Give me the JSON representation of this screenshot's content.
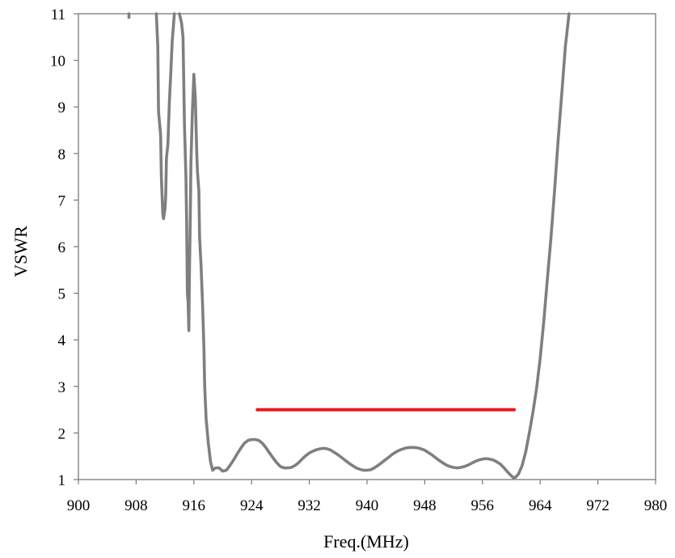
{
  "chart_data": {
    "type": "line",
    "xlabel": "Freq.(MHz)",
    "ylabel": "VSWR",
    "xlim": [
      900,
      980
    ],
    "ylim": [
      1,
      11
    ],
    "xticks": [
      900,
      908,
      916,
      924,
      932,
      940,
      948,
      956,
      964,
      972,
      980
    ],
    "yticks": [
      1,
      2,
      3,
      4,
      5,
      6,
      7,
      8,
      9,
      10,
      11
    ],
    "grid": false,
    "legend": "none",
    "series": [
      {
        "color": "#7f7f7f",
        "points": [
          [
            907.0,
            11.0
          ],
          [
            907.0,
            10.92
          ],
          null,
          [
            910.8,
            11.0
          ],
          [
            911.0,
            10.3
          ],
          [
            911.1,
            8.9
          ],
          [
            911.4,
            8.4
          ],
          [
            911.5,
            7.5
          ],
          [
            911.7,
            6.7
          ],
          [
            911.8,
            6.6
          ],
          [
            912.0,
            6.8
          ],
          [
            912.1,
            7.1
          ],
          [
            912.2,
            7.9
          ],
          [
            912.4,
            8.2
          ],
          [
            912.6,
            9.1
          ],
          [
            912.8,
            9.7
          ],
          [
            913.0,
            10.4
          ],
          [
            913.3,
            11.0
          ],
          null,
          [
            914.0,
            11.0
          ],
          [
            914.3,
            10.8
          ],
          [
            914.5,
            10.5
          ],
          [
            914.7,
            8.6
          ],
          [
            914.9,
            7.5
          ],
          [
            915.0,
            6.5
          ],
          [
            915.1,
            5.0
          ],
          [
            915.2,
            4.8
          ],
          [
            915.3,
            4.2
          ],
          [
            915.4,
            5.5
          ],
          [
            915.5,
            6.5
          ],
          [
            915.6,
            7.8
          ],
          [
            915.8,
            8.9
          ],
          [
            916.0,
            9.7
          ],
          [
            916.2,
            9.2
          ],
          [
            916.4,
            8.0
          ],
          [
            916.5,
            7.6
          ],
          [
            916.7,
            7.2
          ],
          [
            916.8,
            6.2
          ],
          [
            917.0,
            5.6
          ],
          [
            917.2,
            4.8
          ],
          [
            917.4,
            3.8
          ],
          [
            917.5,
            3.0
          ],
          [
            917.7,
            2.3
          ],
          [
            918.0,
            1.8
          ],
          [
            918.3,
            1.4
          ],
          [
            918.6,
            1.2
          ],
          [
            919.0,
            1.25
          ],
          [
            919.5,
            1.25
          ],
          [
            920.0,
            1.18
          ],
          [
            920.5,
            1.2
          ],
          [
            921.0,
            1.3
          ],
          [
            921.5,
            1.42
          ],
          [
            922.0,
            1.55
          ],
          [
            922.5,
            1.67
          ],
          [
            923.0,
            1.78
          ],
          [
            923.5,
            1.84
          ],
          [
            924.0,
            1.86
          ],
          [
            924.5,
            1.86
          ],
          [
            925.0,
            1.84
          ],
          [
            925.5,
            1.78
          ],
          [
            926.0,
            1.68
          ],
          [
            926.5,
            1.57
          ],
          [
            927.0,
            1.46
          ],
          [
            927.5,
            1.36
          ],
          [
            928.0,
            1.28
          ],
          [
            928.5,
            1.25
          ],
          [
            929.0,
            1.25
          ],
          [
            929.5,
            1.26
          ],
          [
            930.0,
            1.3
          ],
          [
            930.5,
            1.36
          ],
          [
            931.0,
            1.44
          ],
          [
            931.5,
            1.51
          ],
          [
            932.0,
            1.57
          ],
          [
            932.5,
            1.61
          ],
          [
            933.0,
            1.64
          ],
          [
            933.5,
            1.66
          ],
          [
            934.0,
            1.67
          ],
          [
            934.5,
            1.66
          ],
          [
            935.0,
            1.63
          ],
          [
            935.5,
            1.58
          ],
          [
            936.0,
            1.53
          ],
          [
            936.5,
            1.47
          ],
          [
            937.0,
            1.41
          ],
          [
            937.5,
            1.35
          ],
          [
            938.0,
            1.3
          ],
          [
            938.5,
            1.25
          ],
          [
            939.0,
            1.22
          ],
          [
            939.5,
            1.2
          ],
          [
            940.0,
            1.2
          ],
          [
            940.5,
            1.21
          ],
          [
            941.0,
            1.25
          ],
          [
            941.5,
            1.3
          ],
          [
            942.0,
            1.36
          ],
          [
            942.5,
            1.42
          ],
          [
            943.0,
            1.48
          ],
          [
            943.5,
            1.54
          ],
          [
            944.0,
            1.59
          ],
          [
            944.5,
            1.63
          ],
          [
            945.0,
            1.66
          ],
          [
            945.5,
            1.68
          ],
          [
            946.0,
            1.69
          ],
          [
            946.5,
            1.69
          ],
          [
            947.0,
            1.68
          ],
          [
            947.5,
            1.66
          ],
          [
            948.0,
            1.63
          ],
          [
            948.5,
            1.58
          ],
          [
            949.0,
            1.53
          ],
          [
            949.5,
            1.47
          ],
          [
            950.0,
            1.41
          ],
          [
            950.5,
            1.36
          ],
          [
            951.0,
            1.31
          ],
          [
            951.5,
            1.28
          ],
          [
            952.0,
            1.26
          ],
          [
            952.5,
            1.25
          ],
          [
            953.0,
            1.26
          ],
          [
            953.5,
            1.28
          ],
          [
            954.0,
            1.31
          ],
          [
            954.5,
            1.35
          ],
          [
            955.0,
            1.39
          ],
          [
            955.5,
            1.42
          ],
          [
            956.0,
            1.44
          ],
          [
            956.5,
            1.45
          ],
          [
            957.0,
            1.44
          ],
          [
            957.5,
            1.42
          ],
          [
            958.0,
            1.38
          ],
          [
            958.5,
            1.33
          ],
          [
            959.0,
            1.25
          ],
          [
            959.5,
            1.16
          ],
          [
            960.0,
            1.08
          ],
          [
            960.3,
            1.04
          ],
          [
            960.6,
            1.05
          ],
          [
            961.0,
            1.12
          ],
          [
            961.5,
            1.3
          ],
          [
            962.0,
            1.6
          ],
          [
            962.5,
            2.0
          ],
          [
            963.0,
            2.45
          ],
          [
            963.5,
            2.95
          ],
          [
            964.0,
            3.6
          ],
          [
            964.5,
            4.4
          ],
          [
            965.0,
            5.3
          ],
          [
            965.5,
            6.2
          ],
          [
            966.0,
            7.2
          ],
          [
            966.5,
            8.3
          ],
          [
            967.0,
            9.3
          ],
          [
            967.5,
            10.3
          ],
          [
            968.0,
            11.0
          ]
        ]
      },
      {
        "color": "#e8171f",
        "points": [
          [
            924.8,
            2.5
          ],
          [
            960.4,
            2.5
          ]
        ]
      }
    ]
  }
}
